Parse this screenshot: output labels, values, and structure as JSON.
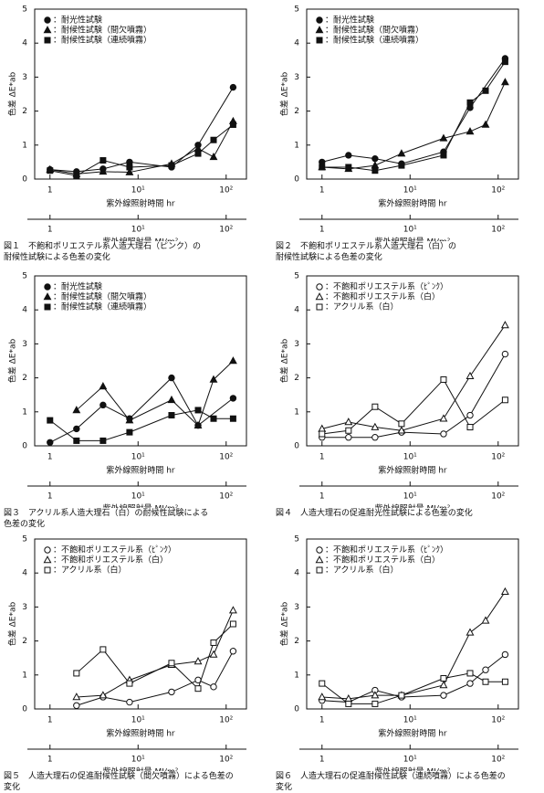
{
  "chart_data": [
    {
      "type": "line",
      "caption": [
        "図１　不飽和ポリエステル系人造大理石（ピンク）の",
        "耐候性試験による色差の変化"
      ],
      "ylabel": "色差 ΔE*ab",
      "xlabel": "紫外線照射時間 hr",
      "x2label": "紫外線照射量 MJ/m²",
      "xscale": "log",
      "xlim": [
        0.67,
        170
      ],
      "xticks": [
        1,
        {
          "value": 10,
          "label": "10¹"
        },
        {
          "value": 100,
          "label": "10²"
        }
      ],
      "x2lim": [
        0.67,
        170
      ],
      "x2ticks": [
        1,
        {
          "value": 10,
          "label": "10¹"
        },
        {
          "value": 100,
          "label": "10²"
        }
      ],
      "ylim": [
        0,
        5
      ],
      "yticks": [
        0,
        1,
        2,
        3,
        4,
        5
      ],
      "series": [
        {
          "name": "：耐光性試験",
          "marker": "circle",
          "filled": true,
          "color": "#111111",
          "x": [
            1,
            2,
            4,
            8,
            24,
            48,
            120
          ],
          "values": [
            0.28,
            0.22,
            0.3,
            0.5,
            0.35,
            1.0,
            2.7
          ]
        },
        {
          "name": "：耐候性試験（間欠噴霧）",
          "marker": "triangle",
          "filled": true,
          "color": "#111111",
          "x": [
            1,
            2,
            4,
            8,
            24,
            48,
            72,
            120
          ],
          "values": [
            0.28,
            0.15,
            0.22,
            0.2,
            0.45,
            0.9,
            0.65,
            1.7
          ]
        },
        {
          "name": "：耐候性試験（連続噴霧）",
          "marker": "square",
          "filled": true,
          "color": "#111111",
          "x": [
            1,
            2,
            4,
            8,
            24,
            48,
            72,
            120
          ],
          "values": [
            0.25,
            0.1,
            0.55,
            0.35,
            0.4,
            0.75,
            1.15,
            1.6
          ]
        }
      ]
    },
    {
      "type": "line",
      "caption": [
        "図２　不飽和ポリエステル系人造大理石（白）の",
        "耐候性試験による色差の変化"
      ],
      "ylabel": "色差 ΔE*ab",
      "xlabel": "紫外線照射時間 hr",
      "x2label": "紫外線照射量 MJ/m²",
      "xscale": "log",
      "xlim": [
        0.67,
        170
      ],
      "xticks": [
        1,
        {
          "value": 10,
          "label": "10¹"
        },
        {
          "value": 100,
          "label": "10²"
        }
      ],
      "x2lim": [
        0.67,
        170
      ],
      "x2ticks": [
        1,
        {
          "value": 10,
          "label": "10¹"
        },
        {
          "value": 100,
          "label": "10²"
        }
      ],
      "ylim": [
        0,
        5
      ],
      "yticks": [
        0,
        1,
        2,
        3,
        4,
        5
      ],
      "series": [
        {
          "name": "：耐光性試験",
          "marker": "circle",
          "filled": true,
          "color": "#111111",
          "x": [
            1,
            2,
            4,
            8,
            24,
            48,
            120
          ],
          "values": [
            0.5,
            0.7,
            0.6,
            0.45,
            0.8,
            2.1,
            3.55
          ]
        },
        {
          "name": "：耐候性試験（間欠噴霧）",
          "marker": "triangle",
          "filled": true,
          "color": "#111111",
          "x": [
            1,
            2,
            4,
            8,
            24,
            48,
            72,
            120
          ],
          "values": [
            0.35,
            0.3,
            0.4,
            0.75,
            1.2,
            1.4,
            1.6,
            2.85
          ]
        },
        {
          "name": "：耐候性試験（連続噴霧）",
          "marker": "square",
          "filled": true,
          "color": "#111111",
          "x": [
            1,
            2,
            4,
            8,
            24,
            48,
            72,
            120
          ],
          "values": [
            0.35,
            0.35,
            0.25,
            0.4,
            0.7,
            2.25,
            2.6,
            3.45
          ]
        }
      ]
    },
    {
      "type": "line",
      "caption": [
        "図３　アクリル系人造大理石（白）の耐候性試験による",
        "色差の変化"
      ],
      "ylabel": "色差 ΔE*ab",
      "xlabel": "紫外線照射時間 hr",
      "x2label": "紫外線照射量 MJ/m²",
      "xscale": "log",
      "xlim": [
        0.67,
        170
      ],
      "xticks": [
        1,
        {
          "value": 10,
          "label": "10¹"
        },
        {
          "value": 100,
          "label": "10²"
        }
      ],
      "x2lim": [
        0.67,
        170
      ],
      "x2ticks": [
        1,
        {
          "value": 10,
          "label": "10¹"
        },
        {
          "value": 100,
          "label": "10²"
        }
      ],
      "ylim": [
        0,
        5
      ],
      "yticks": [
        0,
        1,
        2,
        3,
        4,
        5
      ],
      "series": [
        {
          "name": "：耐光性試験",
          "marker": "circle",
          "filled": true,
          "color": "#111111",
          "x": [
            1,
            2,
            4,
            8,
            24,
            48,
            120
          ],
          "values": [
            0.1,
            0.5,
            1.2,
            0.8,
            2.0,
            0.6,
            1.4
          ]
        },
        {
          "name": "：耐候性試験（間欠噴霧）",
          "marker": "triangle",
          "filled": true,
          "color": "#111111",
          "x": [
            2,
            4,
            8,
            24,
            48,
            72,
            120
          ],
          "values": [
            1.05,
            1.75,
            0.75,
            1.35,
            0.6,
            1.95,
            2.5
          ]
        },
        {
          "name": "：耐候性試験（連続噴霧）",
          "marker": "square",
          "filled": true,
          "color": "#111111",
          "x": [
            1,
            2,
            4,
            8,
            24,
            48,
            72,
            120
          ],
          "values": [
            0.75,
            0.15,
            0.15,
            0.4,
            0.9,
            1.05,
            0.8,
            0.8
          ]
        }
      ]
    },
    {
      "type": "line",
      "caption": [
        "図４　人造大理石の促進耐光性試験による色差の変化"
      ],
      "ylabel": "色差 ΔE*ab",
      "xlabel": "紫外線照射時間 hr",
      "x2label": "紫外線照射量 MJ/m²",
      "xscale": "log",
      "xlim": [
        0.67,
        170
      ],
      "xticks": [
        1,
        {
          "value": 10,
          "label": "10¹"
        },
        {
          "value": 100,
          "label": "10²"
        }
      ],
      "x2lim": [
        0.67,
        170
      ],
      "x2ticks": [
        1,
        {
          "value": 10,
          "label": "10¹"
        },
        {
          "value": 100,
          "label": "10²"
        }
      ],
      "ylim": [
        0,
        5
      ],
      "yticks": [
        0,
        1,
        2,
        3,
        4,
        5
      ],
      "series": [
        {
          "name": "：不飽和ポリエステル系（ﾋﾟﾝｸ）",
          "marker": "circle",
          "filled": false,
          "color": "#111111",
          "x": [
            1,
            2,
            4,
            8,
            24,
            48,
            120
          ],
          "values": [
            0.25,
            0.25,
            0.25,
            0.4,
            0.35,
            0.9,
            2.7
          ]
        },
        {
          "name": "：不飽和ポリエステル系（白）",
          "marker": "triangle",
          "filled": false,
          "color": "#111111",
          "x": [
            1,
            2,
            4,
            8,
            24,
            48,
            120
          ],
          "values": [
            0.5,
            0.7,
            0.55,
            0.45,
            0.8,
            2.05,
            3.55
          ]
        },
        {
          "name": "：アクリル系（白）",
          "marker": "square",
          "filled": false,
          "color": "#111111",
          "x": [
            1,
            2,
            4,
            8,
            24,
            48,
            120
          ],
          "values": [
            0.35,
            0.45,
            1.15,
            0.65,
            1.95,
            0.55,
            1.35
          ]
        }
      ]
    },
    {
      "type": "line",
      "caption": [
        "図５　人造大理石の促進耐候性試験（間欠噴霧）による色差の",
        "変化"
      ],
      "ylabel": "色差 ΔE*ab",
      "xlabel": "紫外線照射時間 hr",
      "x2label": "紫外線照射量 MJ/m²",
      "xscale": "log",
      "xlim": [
        0.67,
        170
      ],
      "xticks": [
        1,
        {
          "value": 10,
          "label": "10¹"
        },
        {
          "value": 100,
          "label": "10²"
        }
      ],
      "x2lim": [
        0.67,
        170
      ],
      "x2ticks": [
        1,
        {
          "value": 10,
          "label": "10¹"
        },
        {
          "value": 100,
          "label": "10²"
        }
      ],
      "ylim": [
        0,
        5
      ],
      "yticks": [
        0,
        1,
        2,
        3,
        4,
        5
      ],
      "series": [
        {
          "name": "：不飽和ポリエステル系（ﾋﾟﾝｸ）",
          "marker": "circle",
          "filled": false,
          "color": "#111111",
          "x": [
            2,
            4,
            8,
            24,
            48,
            72,
            120
          ],
          "values": [
            0.1,
            0.35,
            0.2,
            0.5,
            0.85,
            0.65,
            1.7
          ]
        },
        {
          "name": "：不飽和ポリエステル系（白）",
          "marker": "triangle",
          "filled": false,
          "color": "#111111",
          "x": [
            2,
            4,
            8,
            24,
            48,
            72,
            120
          ],
          "values": [
            0.35,
            0.4,
            0.85,
            1.3,
            1.4,
            1.6,
            2.9
          ]
        },
        {
          "name": "：アクリル系（白）",
          "marker": "square",
          "filled": false,
          "color": "#111111",
          "x": [
            2,
            4,
            8,
            24,
            48,
            72,
            120
          ],
          "values": [
            1.05,
            1.75,
            0.75,
            1.35,
            0.6,
            1.95,
            2.5
          ]
        }
      ]
    },
    {
      "type": "line",
      "caption": [
        "図６　人造大理石の促進耐候性試験（連続噴霧）による色差の",
        "変化"
      ],
      "ylabel": "色差 ΔE*ab",
      "xlabel": "紫外線照射時間 hr",
      "x2label": "紫外線照射量 MJ/m²",
      "xscale": "log",
      "xlim": [
        0.67,
        170
      ],
      "xticks": [
        1,
        {
          "value": 10,
          "label": "10¹"
        },
        {
          "value": 100,
          "label": "10²"
        }
      ],
      "x2lim": [
        0.67,
        170
      ],
      "x2ticks": [
        1,
        {
          "value": 10,
          "label": "10¹"
        },
        {
          "value": 100,
          "label": "10²"
        }
      ],
      "ylim": [
        0,
        5
      ],
      "yticks": [
        0,
        1,
        2,
        3,
        4,
        5
      ],
      "series": [
        {
          "name": "：不飽和ポリエステル系（ﾋﾟﾝｸ）",
          "marker": "circle",
          "filled": false,
          "color": "#111111",
          "x": [
            1,
            2,
            4,
            8,
            24,
            48,
            72,
            120
          ],
          "values": [
            0.25,
            0.2,
            0.55,
            0.35,
            0.4,
            0.75,
            1.15,
            1.6
          ]
        },
        {
          "name": "：不飽和ポリエステル系（白）",
          "marker": "triangle",
          "filled": false,
          "color": "#111111",
          "x": [
            1,
            2,
            4,
            8,
            24,
            48,
            72,
            120
          ],
          "values": [
            0.35,
            0.3,
            0.4,
            0.4,
            0.7,
            2.25,
            2.6,
            3.45
          ]
        },
        {
          "name": "：アクリル系（白）",
          "marker": "square",
          "filled": false,
          "color": "#111111",
          "x": [
            1,
            2,
            4,
            8,
            24,
            48,
            72,
            120
          ],
          "values": [
            0.75,
            0.15,
            0.15,
            0.4,
            0.9,
            1.05,
            0.8,
            0.8
          ]
        }
      ]
    }
  ]
}
